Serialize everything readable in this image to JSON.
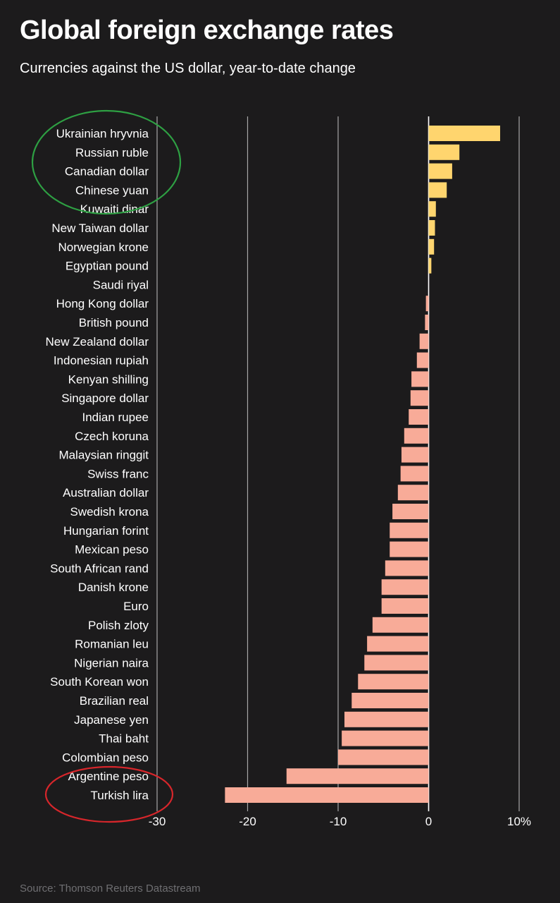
{
  "header": {
    "title": "Global foreign exchange rates",
    "subtitle": "Currencies against the US dollar, year-to-date change"
  },
  "footer": {
    "source": "Source: Thomson Reuters Datastream"
  },
  "colors": {
    "background": "#1c1b1c",
    "positive_bar": "#ffd56e",
    "negative_bar": "#f8ab98",
    "gridline": "#a7a7a7",
    "highlight_top": "#2ea043",
    "highlight_bottom": "#d7262b"
  },
  "annotations": {
    "green_circle_around": [
      "Ukrainian hryvnia",
      "Russian ruble",
      "Canadian dollar",
      "Chinese yuan"
    ],
    "red_circle_around": [
      "Argentine peso",
      "Turkish lira"
    ]
  },
  "chart_data": {
    "type": "bar",
    "orientation": "horizontal",
    "title": "Global foreign exchange rates",
    "subtitle": "Currencies against the US dollar, year-to-date change",
    "xlabel": "",
    "ylabel": "",
    "xlim": [
      -30,
      10
    ],
    "ticks": [
      -30,
      -20,
      -10,
      0,
      10
    ],
    "tick_labels": [
      "-30",
      "-20",
      "-10",
      "0",
      "10%"
    ],
    "grid": true,
    "categories": [
      "Ukrainian hryvnia",
      "Russian ruble",
      "Canadian dollar",
      "Chinese yuan",
      "Kuwaiti dinar",
      "New Taiwan dollar",
      "Norwegian krone",
      "Egyptian pound",
      "Saudi riyal",
      "Hong Kong dollar",
      "British pound",
      "New Zealand dollar",
      "Indonesian rupiah",
      "Kenyan shilling",
      "Singapore dollar",
      "Indian rupee",
      "Czech koruna",
      "Malaysian ringgit",
      "Swiss franc",
      "Australian dollar",
      "Swedish krona",
      "Hungarian forint",
      "Mexican peso",
      "South African rand",
      "Danish krone",
      "Euro",
      "Polish zloty",
      "Romanian leu",
      "Nigerian naira",
      "South Korean won",
      "Brazilian real",
      "Japanese yen",
      "Thai baht",
      "Colombian peso",
      "Argentine peso",
      "Turkish lira"
    ],
    "values": [
      7.9,
      3.4,
      2.6,
      2.0,
      0.8,
      0.7,
      0.6,
      0.3,
      0.0,
      -0.3,
      -0.4,
      -1.0,
      -1.3,
      -1.9,
      -2.0,
      -2.2,
      -2.7,
      -3.0,
      -3.1,
      -3.4,
      -4.0,
      -4.3,
      -4.3,
      -4.8,
      -5.2,
      -5.2,
      -6.2,
      -6.8,
      -7.1,
      -7.8,
      -8.5,
      -9.3,
      -9.6,
      -10.0,
      -15.7,
      -22.5
    ]
  }
}
